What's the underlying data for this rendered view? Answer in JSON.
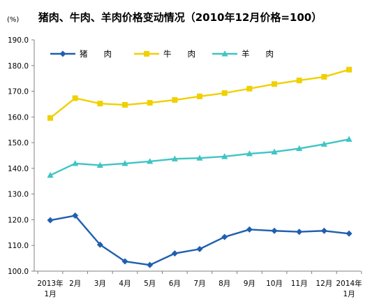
{
  "chart_data": {
    "type": "line",
    "title": "猪肉、牛肉、羊肉价格变动情况（2010年12月价格=100）",
    "unit_label": "(%)",
    "ylim": [
      100,
      190
    ],
    "y_ticks": [
      "100.0",
      "110.0",
      "120.0",
      "130.0",
      "140.0",
      "150.0",
      "160.0",
      "170.0",
      "180.0",
      "190.0"
    ],
    "categories": [
      [
        "2013年",
        "1月"
      ],
      [
        "2月"
      ],
      [
        "3月"
      ],
      [
        "4月"
      ],
      [
        "5月"
      ],
      [
        "6月"
      ],
      [
        "7月"
      ],
      [
        "8月"
      ],
      [
        "9月"
      ],
      [
        "10月"
      ],
      [
        "11月"
      ],
      [
        "12月"
      ],
      [
        "2014年",
        "1月"
      ]
    ],
    "series": [
      {
        "name": "猪肉",
        "legend_label": "猪　　肉",
        "color": "#1f5fb0",
        "marker": "diamond",
        "values": [
          119.8,
          121.6,
          110.3,
          103.8,
          102.4,
          106.9,
          108.6,
          113.3,
          116.2,
          115.7,
          115.3,
          115.7,
          114.6
        ]
      },
      {
        "name": "牛肉",
        "legend_label": "牛　　肉",
        "color": "#f0d000",
        "marker": "square",
        "values": [
          159.6,
          167.3,
          165.2,
          164.7,
          165.5,
          166.6,
          168.0,
          169.3,
          171.0,
          172.8,
          174.2,
          175.6,
          178.4
        ]
      },
      {
        "name": "羊肉",
        "legend_label": "羊　　肉",
        "color": "#40c4c4",
        "marker": "triangle",
        "values": [
          137.3,
          141.9,
          141.2,
          141.9,
          142.7,
          143.7,
          144.0,
          144.6,
          145.7,
          146.4,
          147.7,
          149.4,
          151.3
        ]
      }
    ],
    "grid": false,
    "legend_position": "top-left"
  }
}
